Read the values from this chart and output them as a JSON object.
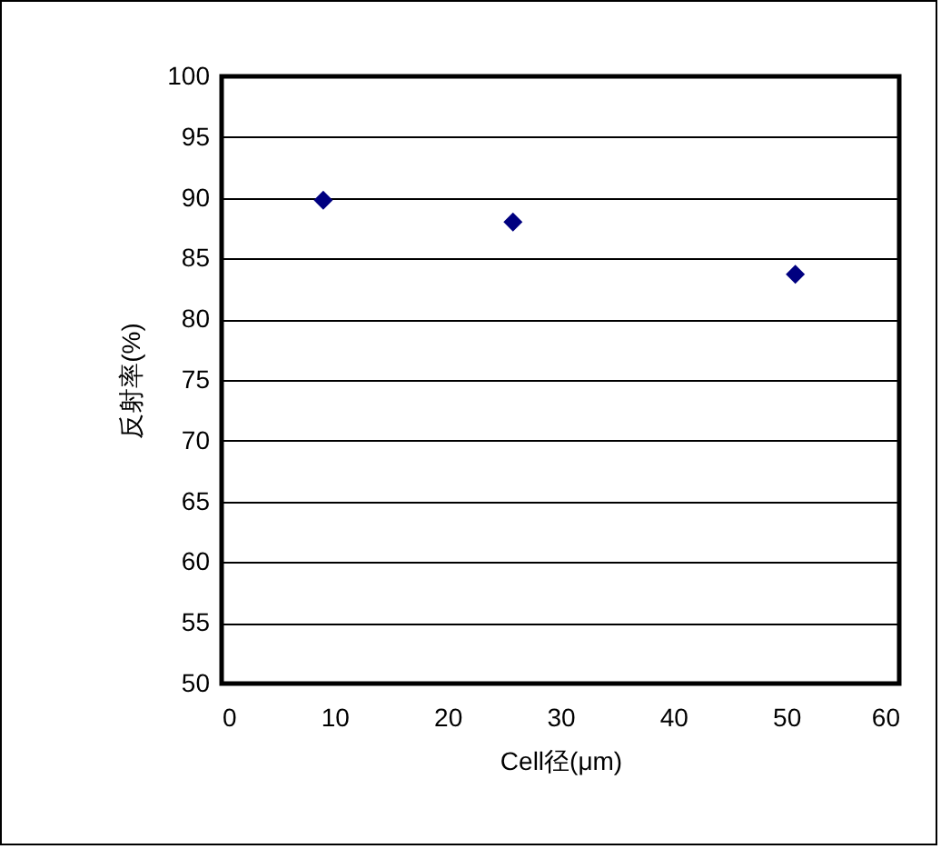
{
  "chart_data": {
    "type": "scatter",
    "xlabel": "Cell径(μm)",
    "ylabel": "反射率(%)",
    "x": [
      9,
      25.8,
      50.8
    ],
    "series": [
      {
        "color": "#000080",
        "values": [
          89.8,
          88.0,
          83.7
        ]
      }
    ],
    "xlim": [
      0,
      60
    ],
    "xticks": [
      0,
      10,
      20,
      30,
      40,
      50,
      60
    ],
    "ylim": [
      50,
      100
    ],
    "yticks": [
      50,
      55,
      60,
      65,
      70,
      75,
      80,
      85,
      90,
      95,
      100
    ],
    "grid": "y",
    "marker": "diamond",
    "legend": false
  }
}
